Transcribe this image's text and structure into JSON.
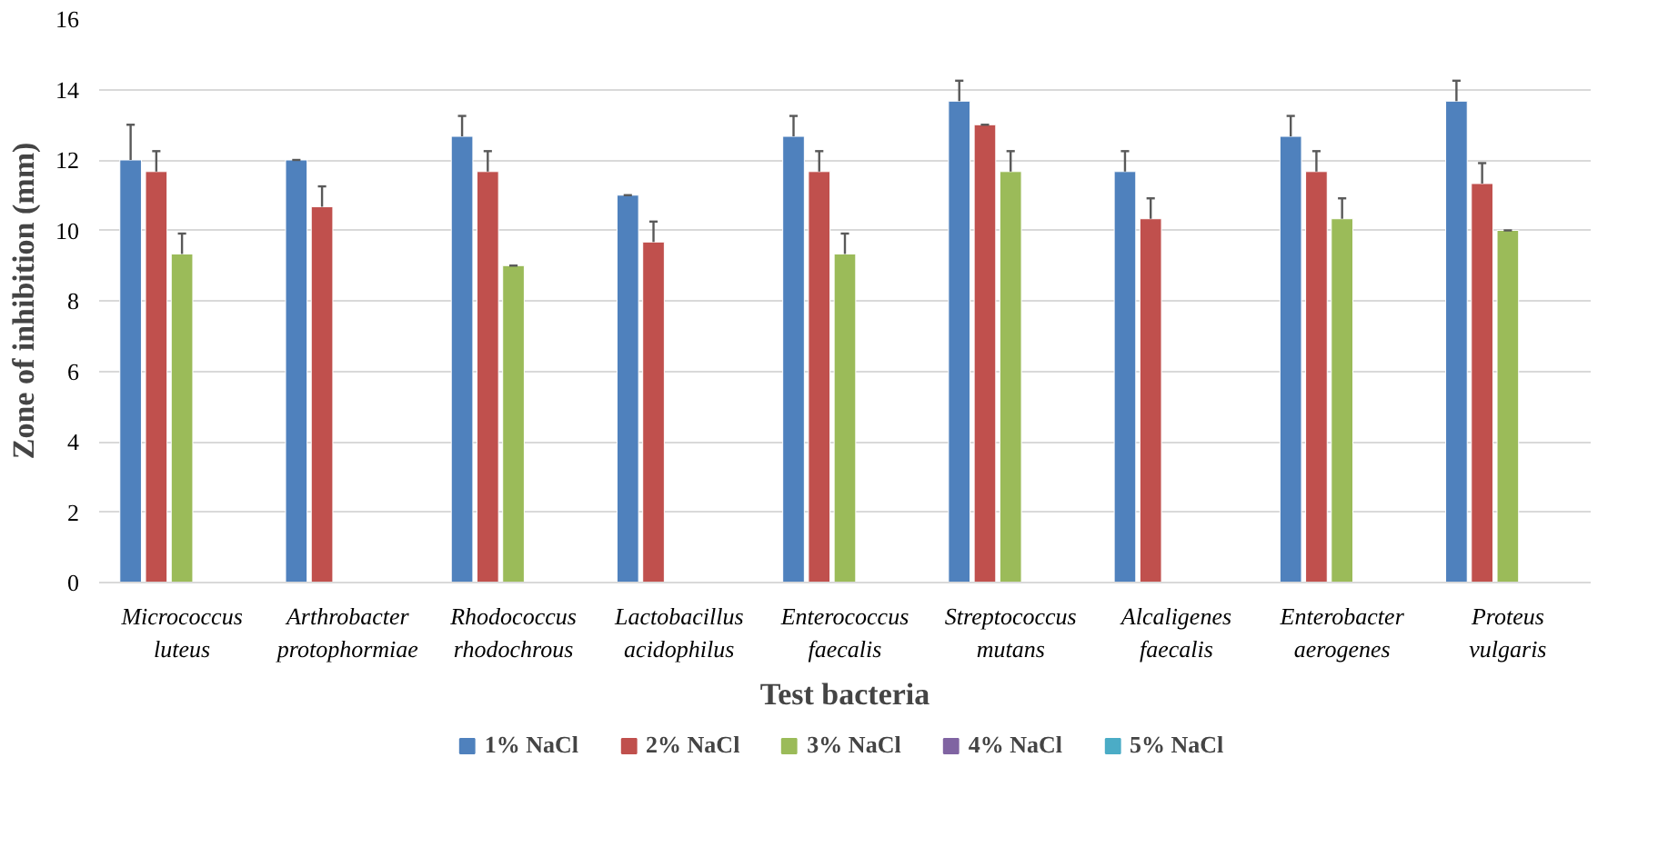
{
  "chart_data": {
    "type": "bar",
    "xlabel": "Test bacteria",
    "ylabel": "Zone of inhibition (mm)",
    "categories": [
      "Micrococcus luteus",
      "Arthrobacter protophormiae",
      "Rhodococcus rhodochrous",
      "Lactobacillus acidophilus",
      "Enterococcus faecalis",
      "Streptococcus mutans",
      "Alcaligenes faecalis",
      "Enterobacter aerogenes",
      "Proteus vulgaris"
    ],
    "series": [
      {
        "name": "1% NaCl",
        "color": "#4f81bd",
        "values": [
          12,
          12,
          12.67,
          11,
          12.67,
          13.67,
          11.67,
          12.67,
          13.67
        ],
        "errors": [
          [
            12,
            13
          ],
          [
            12,
            12
          ],
          [
            12.67,
            13.25
          ],
          [
            11,
            11
          ],
          [
            12.67,
            13.25
          ],
          [
            13.67,
            14.25
          ],
          [
            11.67,
            12.25
          ],
          [
            12.67,
            13.25
          ],
          [
            13.67,
            14.25
          ]
        ]
      },
      {
        "name": "2% NaCl",
        "color": "#c0504d",
        "values": [
          11.67,
          10.67,
          11.67,
          9.67,
          11.67,
          13,
          10.33,
          11.67,
          11.33
        ],
        "errors": [
          [
            11.67,
            12.25
          ],
          [
            10.67,
            11.25
          ],
          [
            11.67,
            12.25
          ],
          [
            9.67,
            10.25
          ],
          [
            11.67,
            12.25
          ],
          [
            13,
            13
          ],
          [
            10.33,
            10.91
          ],
          [
            11.67,
            12.25
          ],
          [
            11.33,
            11.91
          ]
        ]
      },
      {
        "name": "3% NaCl",
        "color": "#9bbb59",
        "values": [
          9.33,
          null,
          9,
          null,
          9.33,
          11.67,
          null,
          10.33,
          10
        ],
        "errors": [
          [
            9.33,
            9.91
          ],
          null,
          [
            9,
            9
          ],
          null,
          [
            9.33,
            9.91
          ],
          [
            11.67,
            12.25
          ],
          null,
          [
            10.33,
            10.91
          ],
          [
            10,
            10
          ]
        ]
      },
      {
        "name": "4% NaCl",
        "color": "#8064a2",
        "values": [
          null,
          null,
          null,
          null,
          null,
          null,
          null,
          null,
          null
        ]
      },
      {
        "name": "5% NaCl",
        "color": "#4bacc6",
        "values": [
          null,
          null,
          null,
          null,
          null,
          null,
          null,
          null,
          null
        ]
      }
    ],
    "ylim": [
      0,
      16
    ],
    "yticks": [
      0,
      2,
      4,
      6,
      8,
      10,
      12,
      14,
      16
    ],
    "grid": "y",
    "legend": "bottom"
  }
}
